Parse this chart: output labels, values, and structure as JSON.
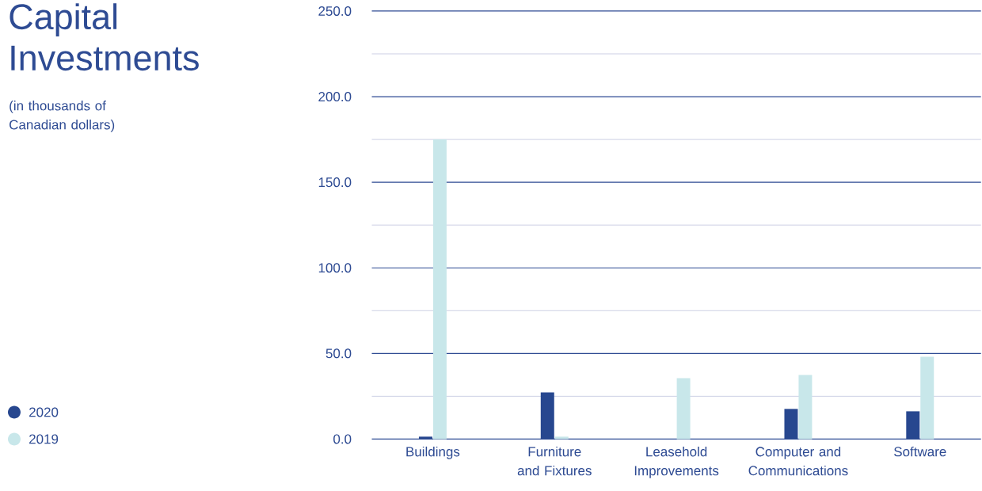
{
  "chart_data": {
    "type": "bar",
    "title": "Capital Investments",
    "subtitle": "(in thousands of Canadian dollars)",
    "categories": [
      "Buildings",
      "Furniture and Fixtures",
      "Leasehold Improvements",
      "Computer and Communications",
      "Software"
    ],
    "series": [
      {
        "name": "2020",
        "color": "#27478f",
        "values": [
          1.4,
          27.3,
          0,
          17.6,
          16.2
        ]
      },
      {
        "name": "2019",
        "color": "#c8e7ea",
        "values": [
          175.1,
          1.4,
          35.6,
          37.4,
          48.1
        ]
      }
    ],
    "ylim": [
      0,
      250
    ],
    "yticks": [
      {
        "value": 0,
        "label": "0.0"
      },
      {
        "value": 25,
        "label": null
      },
      {
        "value": 50,
        "label": "50.0"
      },
      {
        "value": 75,
        "label": null
      },
      {
        "value": 100,
        "label": "100.0"
      },
      {
        "value": 125,
        "label": null
      },
      {
        "value": 150,
        "label": "150.0"
      },
      {
        "value": 175,
        "label": null
      },
      {
        "value": 200,
        "label": "200.0"
      },
      {
        "value": 225,
        "label": null
      },
      {
        "value": 250,
        "label": "250.0"
      }
    ],
    "grid": "y",
    "legend": "bottom left"
  }
}
